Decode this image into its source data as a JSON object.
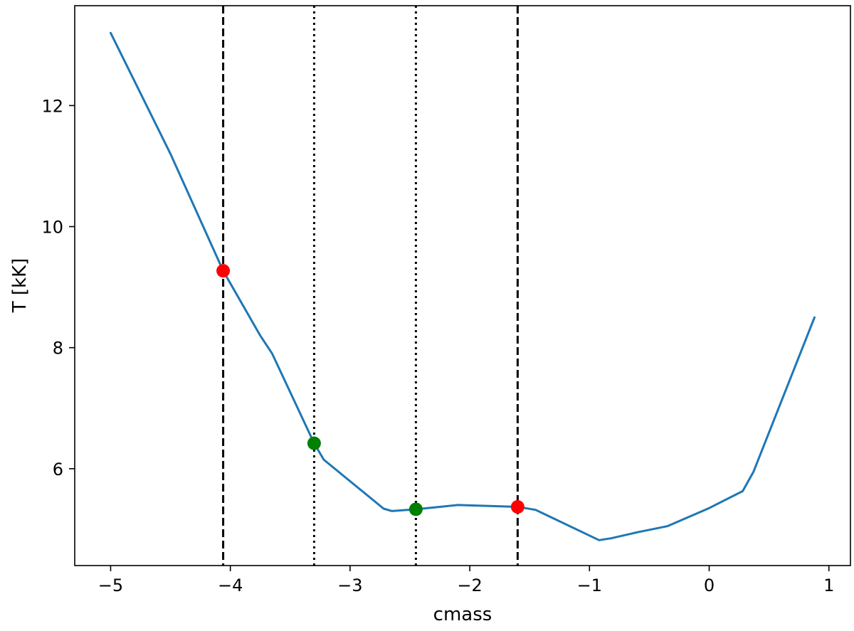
{
  "chart_data": {
    "type": "line",
    "xlabel": "cmass",
    "ylabel": "T [kK]",
    "xlim": [
      -5.3,
      1.18
    ],
    "ylim": [
      4.4,
      13.65
    ],
    "xticks": [
      -5,
      -4,
      -3,
      -2,
      -1,
      0,
      1
    ],
    "yticks": [
      6,
      8,
      10,
      12
    ],
    "xtick_labels": [
      "−5",
      "−4",
      "−3",
      "−2",
      "−1",
      "0",
      "1"
    ],
    "ytick_labels": [
      "6",
      "8",
      "10",
      "12"
    ],
    "grid": false,
    "series": [
      {
        "color": "#1f77b4",
        "points": [
          [
            -5.0,
            13.2
          ],
          [
            -4.5,
            11.2
          ],
          [
            -4.06,
            9.27
          ],
          [
            -3.75,
            8.2
          ],
          [
            -3.65,
            7.9
          ],
          [
            -3.3,
            6.42
          ],
          [
            -3.22,
            6.15
          ],
          [
            -2.72,
            5.34
          ],
          [
            -2.65,
            5.3
          ],
          [
            -2.45,
            5.33
          ],
          [
            -2.25,
            5.37
          ],
          [
            -2.1,
            5.4
          ],
          [
            -1.6,
            5.37
          ],
          [
            -1.45,
            5.32
          ],
          [
            -0.92,
            4.82
          ],
          [
            -0.82,
            4.85
          ],
          [
            -0.6,
            4.95
          ],
          [
            -0.35,
            5.05
          ],
          [
            0.0,
            5.35
          ],
          [
            0.28,
            5.63
          ],
          [
            0.37,
            5.95
          ],
          [
            0.88,
            8.5
          ]
        ]
      }
    ],
    "vlines": [
      {
        "x": -4.06,
        "style": "dashed",
        "color": "#000000"
      },
      {
        "x": -3.3,
        "style": "dotted",
        "color": "#000000"
      },
      {
        "x": -2.45,
        "style": "dotted",
        "color": "#000000"
      },
      {
        "x": -1.6,
        "style": "dashed",
        "color": "#000000"
      }
    ],
    "markers": [
      {
        "x": -4.06,
        "y": 9.27,
        "color": "#ff0000"
      },
      {
        "x": -3.3,
        "y": 6.42,
        "color": "#008000"
      },
      {
        "x": -2.45,
        "y": 5.33,
        "color": "#008000"
      },
      {
        "x": -1.6,
        "y": 5.37,
        "color": "#ff0000"
      }
    ]
  }
}
